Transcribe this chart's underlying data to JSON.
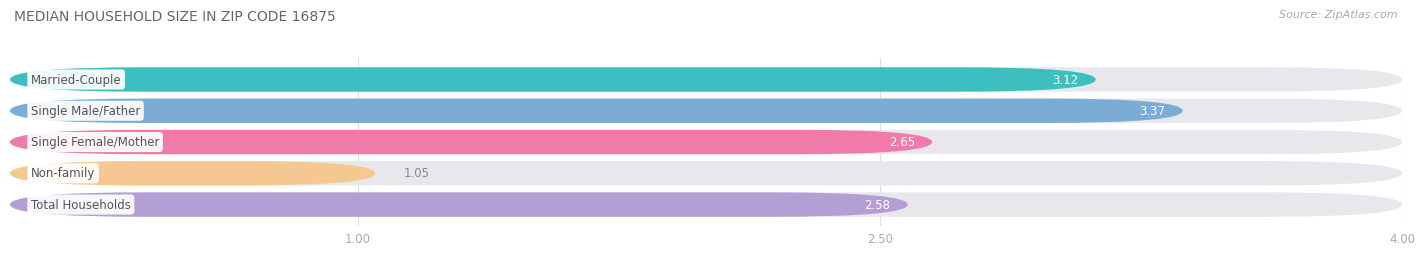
{
  "title": "MEDIAN HOUSEHOLD SIZE IN ZIP CODE 16875",
  "source": "Source: ZipAtlas.com",
  "categories": [
    "Married-Couple",
    "Single Male/Father",
    "Single Female/Mother",
    "Non-family",
    "Total Households"
  ],
  "values": [
    3.12,
    3.37,
    2.65,
    1.05,
    2.58
  ],
  "bar_colors": [
    "#3dbfbf",
    "#7aacd6",
    "#f07aaa",
    "#f5c891",
    "#b49fd4"
  ],
  "background_color": "#ffffff",
  "bar_bg_color": "#e8e8ec",
  "xlim": [
    0,
    4.0
  ],
  "xticks": [
    1.0,
    2.5,
    4.0
  ],
  "xtick_labels": [
    "1.00",
    "2.50",
    "4.00"
  ],
  "label_fontsize": 8.5,
  "value_fontsize": 8.5,
  "title_fontsize": 10,
  "source_fontsize": 8,
  "value_inside_color": "#ffffff",
  "value_outside_color": "#888888",
  "inside_threshold": 2.5
}
